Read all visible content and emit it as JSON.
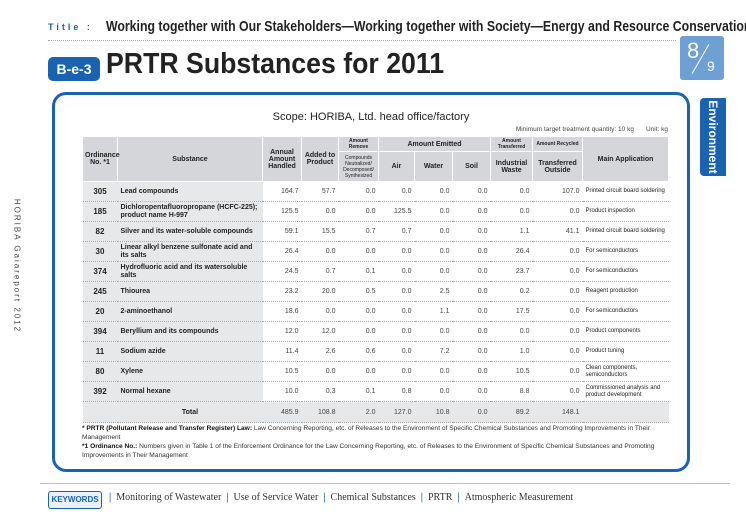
{
  "header": {
    "label": "Title :",
    "title": "Working together with Our Stakeholders—Working together with Society—Energy and Resource Conservation",
    "badge": "B-e-3",
    "heading": "PRTR Substances for 2011",
    "page_number": "8",
    "page_total": "9"
  },
  "side_tab": "Environment",
  "side_text": "HORIBA Gaiareport 2012",
  "scope": "Scope: HORIBA, Ltd. head office/factory",
  "minimum_note": "Minimum target treatment quantity: 10 kg",
  "unit_note": "Unit: kg",
  "table": {
    "headers": {
      "ordinance": "Ordinance No. *1",
      "substance": "Substance",
      "annual": "Annual Amount Handled",
      "added": "Added to Product",
      "remove_group": "Amount Remove",
      "remove": "Compounds Neutralized/ Decomposed/ Synthesized",
      "emitted_group": "Amount Emitted",
      "air": "Air",
      "water": "Water",
      "soil": "Soil",
      "transferred_group": "Amount Transferred",
      "industrial": "Industrial Waste",
      "recycled_group": "Amount Recycled",
      "outside": "Transferred Outside",
      "application": "Main Application"
    },
    "rows": [
      [
        "305",
        "Lead compounds",
        "164.7",
        "57.7",
        "0.0",
        "0.0",
        "0.0",
        "0.0",
        "0.0",
        "107.0",
        "Printed circuit board soldering"
      ],
      [
        "185",
        "Dichloropentafluoropropane (HCFC-225); product name H-997",
        "125.5",
        "0.0",
        "0.0",
        "125.5",
        "0.0",
        "0.0",
        "0.0",
        "0.0",
        "Product inspection"
      ],
      [
        "82",
        "Silver and its water-soluble compounds",
        "59.1",
        "15.5",
        "0.7",
        "0.7",
        "0.0",
        "0.0",
        "1.1",
        "41.1",
        "Printed circuit board soldering"
      ],
      [
        "30",
        "Linear alkyl benzene sulfonate acid and its salts",
        "26.4",
        "0.0",
        "0.0",
        "0.0",
        "0.0",
        "0.0",
        "26.4",
        "0.0",
        "For semiconductors"
      ],
      [
        "374",
        "Hydrofluoric acid and its watersoluble salts",
        "24.5",
        "0.7",
        "0.1",
        "0.0",
        "0.0",
        "0.0",
        "23.7",
        "0.0",
        "For semiconductors"
      ],
      [
        "245",
        "Thiourea",
        "23.2",
        "20.0",
        "0.5",
        "0.0",
        "2.5",
        "0.0",
        "0.2",
        "0.0",
        "Reagent production"
      ],
      [
        "20",
        "2-aminoethanol",
        "18.6",
        "0.0",
        "0.0",
        "0.0",
        "1.1",
        "0.0",
        "17.5",
        "0.0",
        "For semiconductors"
      ],
      [
        "394",
        "Beryllium and its compounds",
        "12.0",
        "12.0",
        "0.0",
        "0.0",
        "0.0",
        "0.0",
        "0.0",
        "0.0",
        "Product components"
      ],
      [
        "11",
        "Sodium azide",
        "11.4",
        "2.6",
        "0.6",
        "0.0",
        "7.2",
        "0.0",
        "1.0",
        "0.0",
        "Product tuning"
      ],
      [
        "80",
        "Xylene",
        "10.5",
        "0.0",
        "0.0",
        "0.0",
        "0.0",
        "0.0",
        "10.5",
        "0.0",
        "Clean components, semiconductors"
      ],
      [
        "392",
        "Normal hexane",
        "10.0",
        "0.3",
        "0.1",
        "0.8",
        "0.0",
        "0.0",
        "8.8",
        "0.0",
        "Commissioned analysis and product development"
      ]
    ],
    "total": {
      "label": "Total",
      "values": [
        "485.9",
        "108.8",
        "2.0",
        "127.0",
        "10.8",
        "0.0",
        "89.2",
        "148.1"
      ]
    }
  },
  "footnotes": [
    {
      "term": "* PRTR (Pollutant Release and Transfer Register) Law:",
      "text": "Law Concerning Reporting, etc. of Releases to the Environment of Specific Chemical Substances and Promoting Improvements in Their Management"
    },
    {
      "term": "*1 Ordinance No.:",
      "text": "Numbers given in Table 1 of the Enforcement Ordinance for the Law Concerning Reporting, etc. of Releases to the Environment of Specific Chemical Substances and Promoting Improvements in Their Management"
    }
  ],
  "footer": {
    "label": "KEYWORDS",
    "keywords": [
      "Monitoring of Wastewater",
      "Use of Service Water",
      "Chemical Substances",
      "PRTR",
      "Atmospheric Measurement"
    ]
  }
}
